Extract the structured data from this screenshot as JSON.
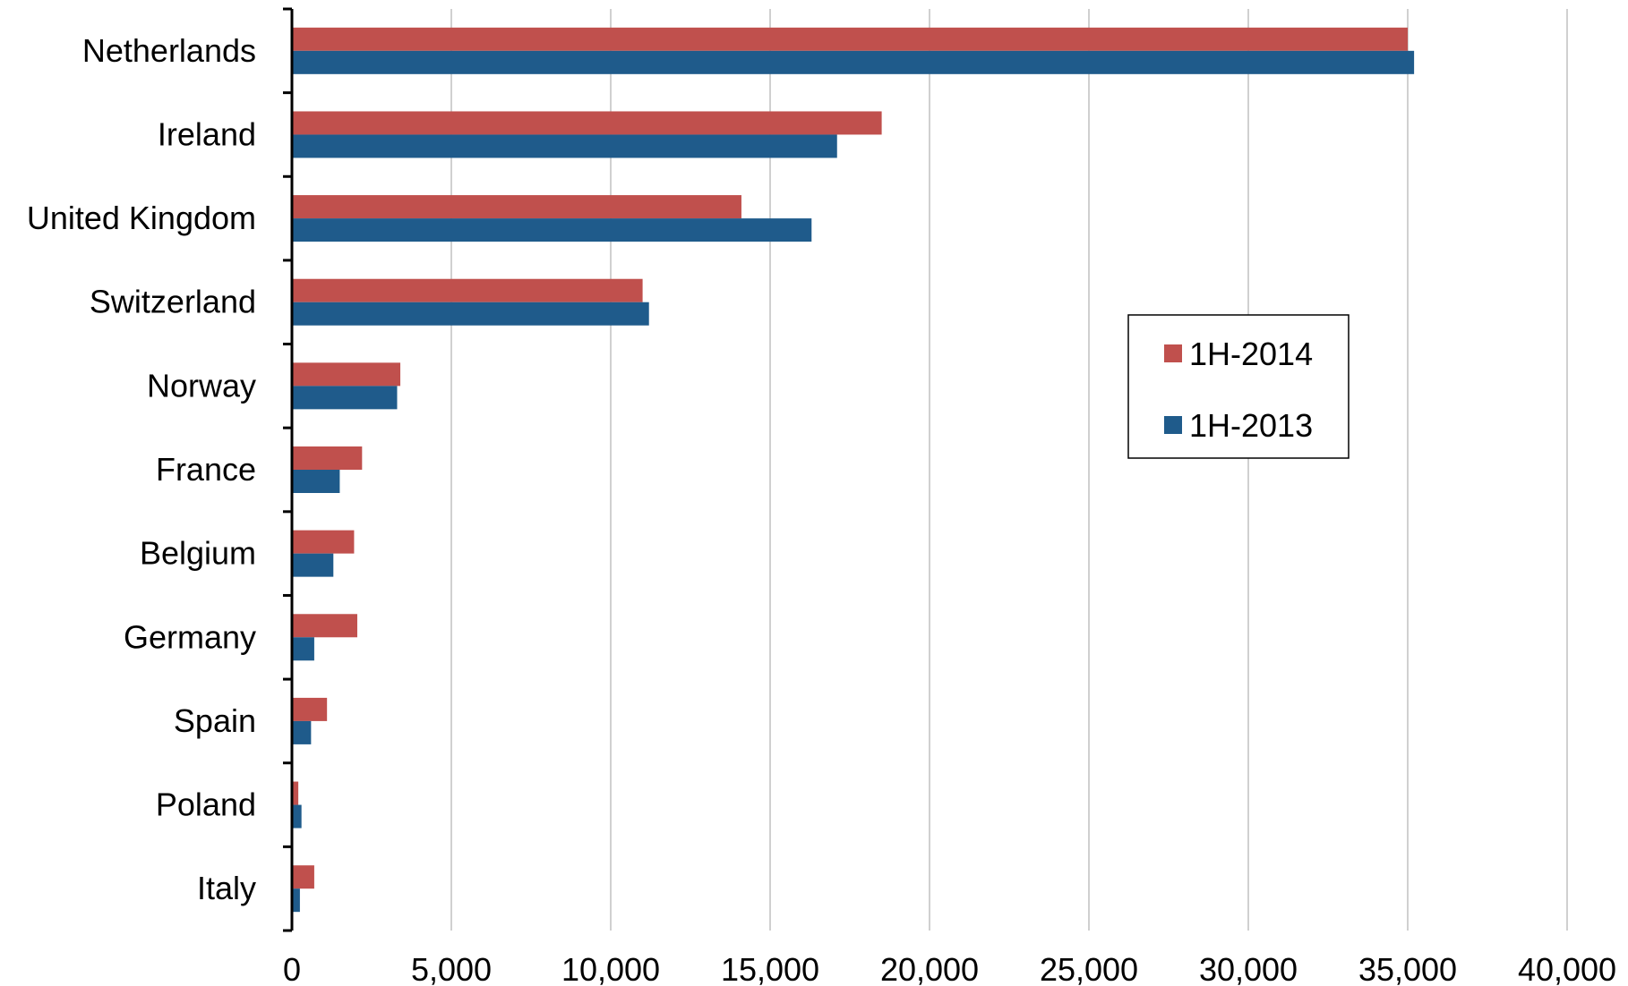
{
  "chart_data": {
    "type": "bar",
    "orientation": "horizontal",
    "title": "",
    "xlabel": "",
    "ylabel": "",
    "xlim": [
      0,
      40000
    ],
    "x_ticks": [
      0,
      5000,
      10000,
      15000,
      20000,
      25000,
      30000,
      35000,
      40000
    ],
    "x_tick_labels": [
      "0",
      "5,000",
      "10,000",
      "15,000",
      "20,000",
      "25,000",
      "30,000",
      "35,000",
      "40,000"
    ],
    "grid": "vertical",
    "legend_position": "right",
    "categories": [
      "Netherlands",
      "Ireland",
      "United Kingdom",
      "Switzerland",
      "Norway",
      "France",
      "Belgium",
      "Germany",
      "Spain",
      "Poland",
      "Italy"
    ],
    "series": [
      {
        "name": "1H-2014",
        "color": "#c0504d",
        "values": [
          35000,
          18500,
          14100,
          11000,
          3400,
          2200,
          1950,
          2050,
          1100,
          200,
          700
        ]
      },
      {
        "name": "1H-2013",
        "color": "#1f5b8b",
        "values": [
          35200,
          17100,
          16300,
          11200,
          3300,
          1500,
          1300,
          700,
          600,
          300,
          250
        ]
      }
    ]
  }
}
